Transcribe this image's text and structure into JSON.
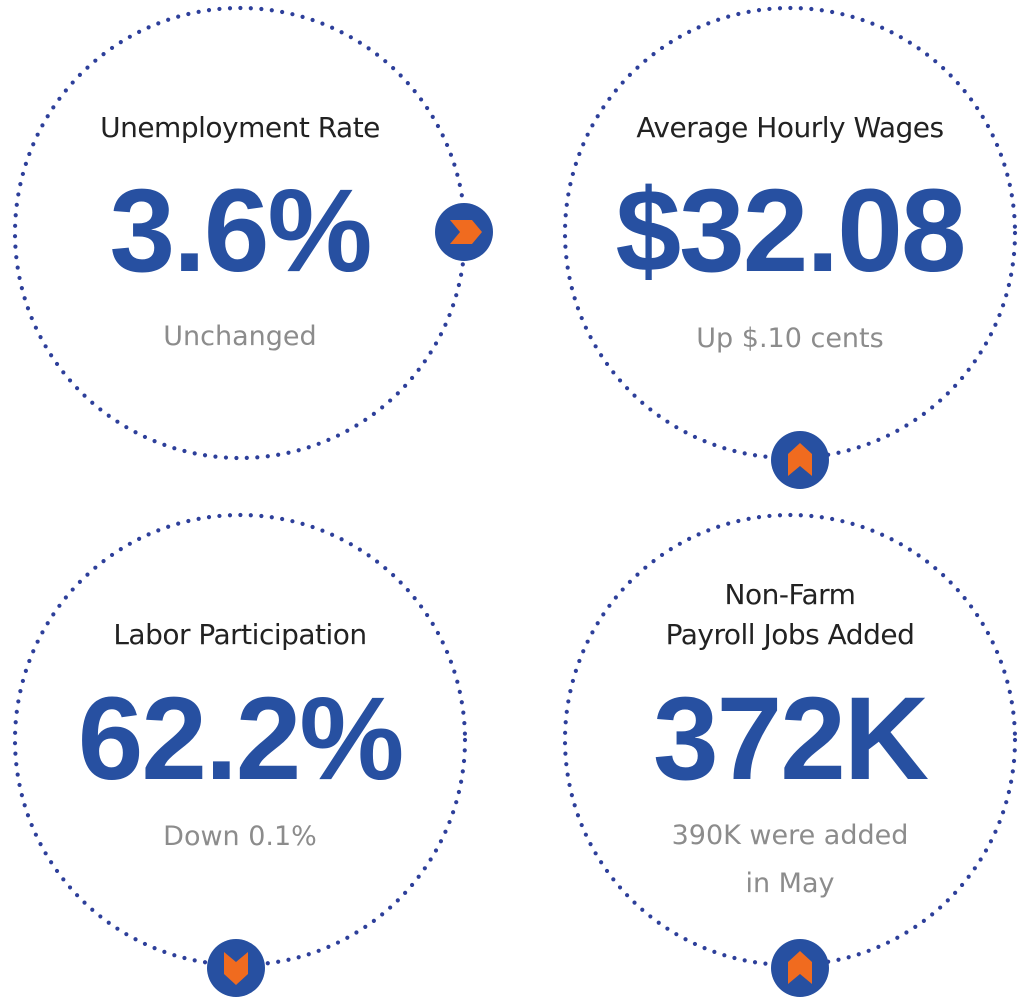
{
  "stats": [
    {
      "title": "Unemployment Rate",
      "value": "3.6%",
      "change": "Unchanged"
    },
    {
      "title": "Average Hourly Wages",
      "value": "$32.08",
      "change": "Up $.10 cents"
    },
    {
      "title": "Labor Participation",
      "value": "62.2%",
      "change": "Down 0.1%"
    },
    {
      "title_line1": "Non-Farm",
      "title_line2": "Payroll Jobs Added",
      "value": "372K",
      "change_line1": "390K were added",
      "change_line2": "in May"
    }
  ],
  "colors": {
    "accent_blue": "#2750a1",
    "dot_ring": "#2d3f9a",
    "badge_arrow": "#f06b1f",
    "caption_gray": "#8c8c8c"
  },
  "icons": {
    "unemployment": "arrow-right-icon",
    "wages": "arrow-up-icon",
    "participation": "arrow-down-icon",
    "payroll": "arrow-up-icon"
  }
}
